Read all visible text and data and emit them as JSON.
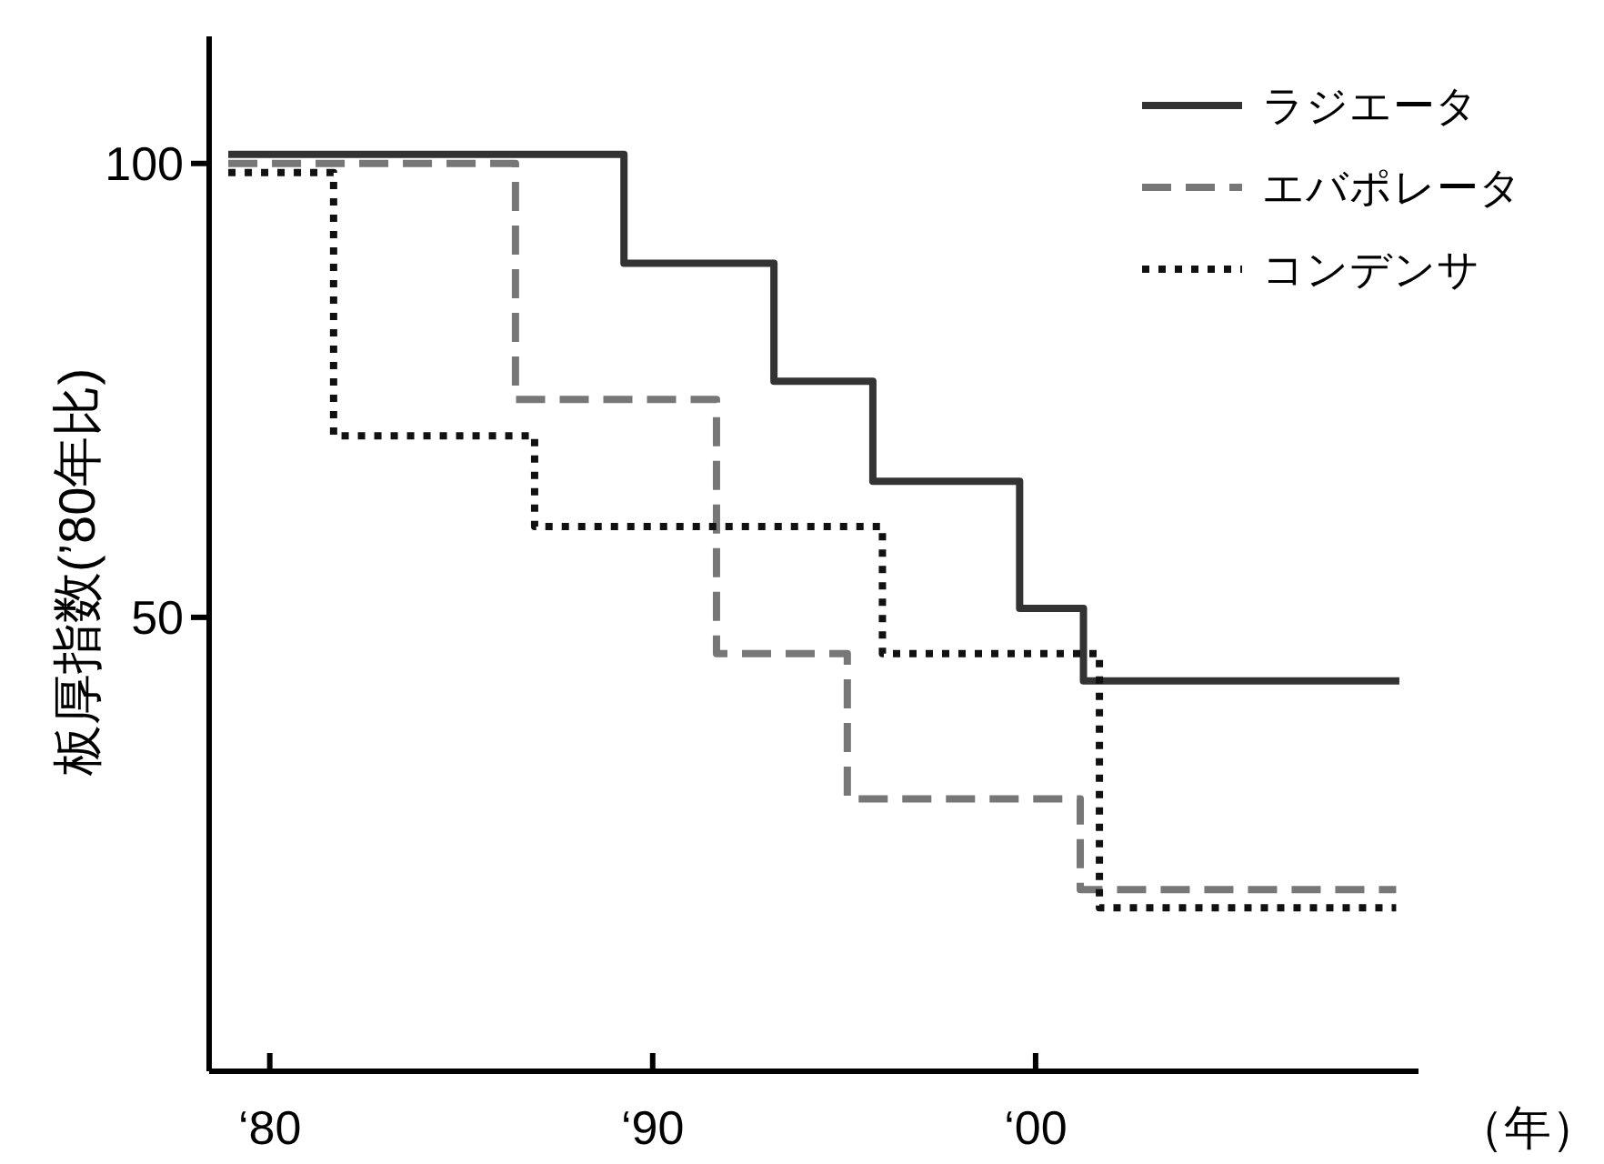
{
  "chart_data": {
    "type": "step",
    "ylabel": "板厚指数(’80年比)",
    "xlabel": "（年）",
    "xlim": [
      "1978-06",
      "2010-01"
    ],
    "ylim": [
      0,
      114
    ],
    "xticks": [
      {
        "value": "1980",
        "label": "‘80"
      },
      {
        "value": "1990",
        "label": "‘90"
      },
      {
        "value": "2000",
        "label": "‘00"
      }
    ],
    "yticks": [
      50,
      100
    ],
    "legend": "top right",
    "grid": false,
    "series": [
      {
        "name": "ラジエータ",
        "color": "#333333",
        "line_style": "solid",
        "x": [
          "1978-12",
          "1989-04",
          "1993-03",
          "1995-10",
          "1999-08",
          "2001-04",
          "2009-07"
        ],
        "values": [
          101,
          89,
          76,
          65,
          51,
          43,
          43
        ]
      },
      {
        "name": "エバポレータ",
        "color": "#777777",
        "line_style": "dashed",
        "x": [
          "1978-12",
          "1986-06",
          "1991-09",
          "1995-02",
          "2001-03",
          "2009-06"
        ],
        "values": [
          100,
          74,
          46,
          30,
          20,
          20
        ]
      },
      {
        "name": "コンデンサ",
        "color": "#111111",
        "line_style": "dotted",
        "x": [
          "1978-12",
          "1981-09",
          "1986-12",
          "1996-01",
          "2001-09",
          "2009-06"
        ],
        "values": [
          99,
          70,
          60,
          46,
          18,
          18
        ]
      }
    ]
  }
}
